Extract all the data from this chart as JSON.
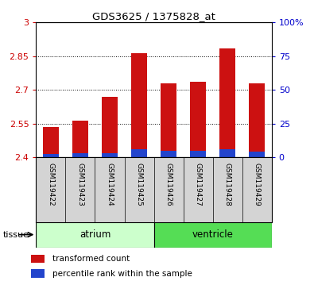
{
  "title": "GDS3625 / 1375828_at",
  "samples": [
    "GSM119422",
    "GSM119423",
    "GSM119424",
    "GSM119425",
    "GSM119426",
    "GSM119427",
    "GSM119428",
    "GSM119429"
  ],
  "red_values": [
    2.535,
    2.565,
    2.67,
    2.865,
    2.73,
    2.735,
    2.885,
    2.73
  ],
  "blue_values": [
    2.415,
    2.42,
    2.42,
    2.435,
    2.43,
    2.43,
    2.435,
    2.425
  ],
  "base": 2.4,
  "ylim_left": [
    2.4,
    3.0
  ],
  "ylim_right": [
    0,
    100
  ],
  "yticks_left": [
    2.4,
    2.55,
    2.7,
    2.85,
    3.0
  ],
  "yticks_right": [
    0,
    25,
    50,
    75,
    100
  ],
  "ytick_labels_left": [
    "2.4",
    "2.55",
    "2.7",
    "2.85",
    "3"
  ],
  "ytick_labels_right": [
    "0",
    "25",
    "50",
    "75",
    "100%"
  ],
  "groups": [
    {
      "label": "atrium",
      "start": 0,
      "end": 4,
      "color": "#ccffcc"
    },
    {
      "label": "ventricle",
      "start": 4,
      "end": 8,
      "color": "#55dd55"
    }
  ],
  "tissue_label": "tissue",
  "bar_width": 0.55,
  "red_color": "#cc1111",
  "blue_color": "#2244cc",
  "left_tick_color": "#cc0000",
  "right_tick_color": "#0000cc",
  "legend_red": "transformed count",
  "legend_blue": "percentile rank within the sample",
  "sample_bg": "#d4d4d4",
  "plot_bg": "#ffffff"
}
